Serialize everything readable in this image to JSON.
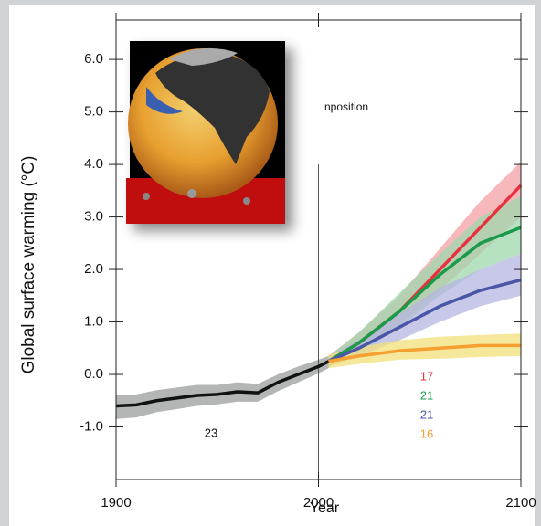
{
  "chart_data": {
    "type": "line",
    "x_label": "Year",
    "y_label": "Global surface warming (°C)",
    "annotation": "nposition",
    "xlim": [
      1900,
      2100
    ],
    "ylim": [
      -2.0,
      6.75
    ],
    "xticks": [
      1900,
      2000,
      2100
    ],
    "yticks": [
      {
        "value": -1,
        "label": "-1.0"
      },
      {
        "value": 0,
        "label": "0.0"
      },
      {
        "value": 1,
        "label": "1.0"
      },
      {
        "value": 2,
        "label": "2.0"
      },
      {
        "value": 3,
        "label": "3.0"
      },
      {
        "value": 4,
        "label": "4.0"
      },
      {
        "value": 5,
        "label": "5.0"
      },
      {
        "value": 6,
        "label": "6.0"
      }
    ],
    "divider_x": 2000,
    "series": [
      {
        "color": "#111111",
        "band_color": "#9a9d9b",
        "model_count": 23,
        "x": [
          1900,
          1910,
          1920,
          1930,
          1940,
          1950,
          1960,
          1970,
          1980,
          1990,
          2000,
          2005
        ],
        "values": [
          -0.6,
          -0.58,
          -0.5,
          -0.45,
          -0.4,
          -0.38,
          -0.33,
          -0.35,
          -0.15,
          0.0,
          0.15,
          0.25
        ],
        "lower": [
          -0.85,
          -0.82,
          -0.72,
          -0.66,
          -0.6,
          -0.57,
          -0.52,
          -0.52,
          -0.32,
          -0.15,
          0.02,
          0.12
        ],
        "upper": [
          -0.4,
          -0.38,
          -0.3,
          -0.25,
          -0.2,
          -0.2,
          -0.15,
          -0.18,
          0.0,
          0.15,
          0.28,
          0.35
        ]
      },
      {
        "color": "#e8303f",
        "band_color": "#f4a0a6",
        "model_count": 17,
        "x": [
          2005,
          2020,
          2040,
          2060,
          2080,
          2100
        ],
        "values": [
          0.25,
          0.6,
          1.2,
          2.0,
          2.8,
          3.6
        ],
        "lower": [
          0.15,
          0.45,
          0.95,
          1.6,
          2.3,
          3.0
        ],
        "upper": [
          0.35,
          0.8,
          1.5,
          2.4,
          3.3,
          4.05
        ]
      },
      {
        "color": "#1a9a4a",
        "band_color": "#9ed8ae",
        "model_count": 21,
        "x": [
          2005,
          2020,
          2040,
          2060,
          2080,
          2100
        ],
        "values": [
          0.25,
          0.6,
          1.2,
          1.9,
          2.5,
          2.8
        ],
        "lower": [
          0.15,
          0.4,
          0.9,
          1.5,
          2.0,
          2.3
        ],
        "upper": [
          0.35,
          0.8,
          1.55,
          2.3,
          3.0,
          3.4
        ]
      },
      {
        "color": "#4a56a8",
        "band_color": "#b5b6e0",
        "model_count": 21,
        "x": [
          2005,
          2020,
          2040,
          2060,
          2080,
          2100
        ],
        "values": [
          0.25,
          0.5,
          0.9,
          1.3,
          1.6,
          1.8
        ],
        "lower": [
          0.15,
          0.35,
          0.65,
          1.0,
          1.3,
          1.5
        ],
        "upper": [
          0.35,
          0.65,
          1.15,
          1.65,
          2.0,
          2.3
        ]
      },
      {
        "color": "#f5a030",
        "band_color": "#f2e07a",
        "model_count": 16,
        "x": [
          2005,
          2020,
          2040,
          2060,
          2080,
          2100
        ],
        "values": [
          0.25,
          0.35,
          0.45,
          0.5,
          0.55,
          0.55
        ],
        "lower": [
          0.12,
          0.2,
          0.28,
          0.3,
          0.33,
          0.35
        ],
        "upper": [
          0.38,
          0.52,
          0.65,
          0.72,
          0.75,
          0.78
        ]
      }
    ]
  }
}
